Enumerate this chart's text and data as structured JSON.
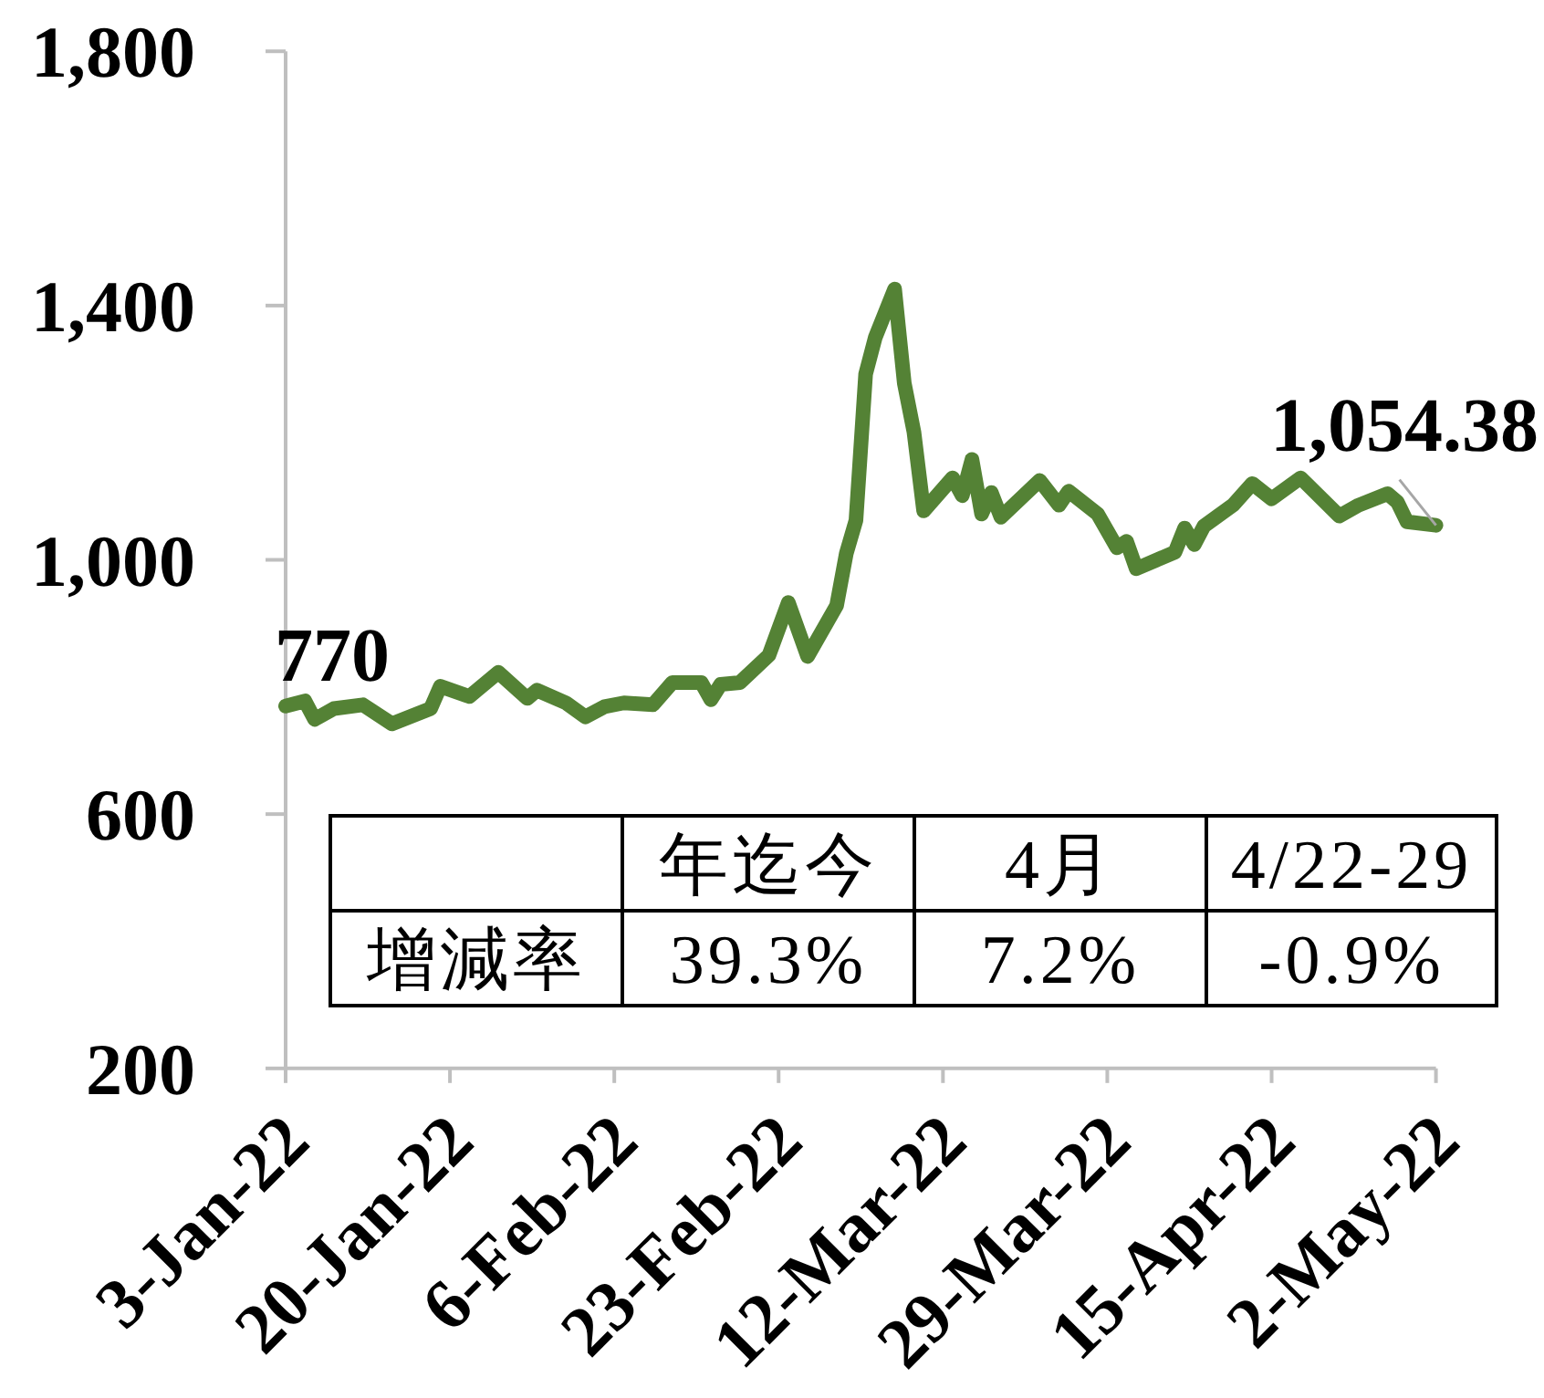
{
  "chart_data": {
    "type": "line",
    "color": "#548235",
    "x": [
      "2022-01-03",
      "2022-01-05",
      "2022-01-06",
      "2022-01-08",
      "2022-01-11",
      "2022-01-14",
      "2022-01-18",
      "2022-01-19",
      "2022-01-22",
      "2022-01-25",
      "2022-01-28",
      "2022-01-29",
      "2022-02-01",
      "2022-02-03",
      "2022-02-05",
      "2022-02-07",
      "2022-02-10",
      "2022-02-12",
      "2022-02-15",
      "2022-02-16",
      "2022-02-17",
      "2022-02-19",
      "2022-02-22",
      "2022-02-24",
      "2022-02-26",
      "2022-03-01",
      "2022-03-02",
      "2022-03-03",
      "2022-03-04",
      "2022-03-05",
      "2022-03-07",
      "2022-03-08",
      "2022-03-09",
      "2022-03-10",
      "2022-03-13",
      "2022-03-14",
      "2022-03-15",
      "2022-03-16",
      "2022-03-17",
      "2022-03-18",
      "2022-03-22",
      "2022-03-24",
      "2022-03-25",
      "2022-03-28",
      "2022-03-30",
      "2022-03-31",
      "2022-04-01",
      "2022-04-05",
      "2022-04-06",
      "2022-04-07",
      "2022-04-08",
      "2022-04-11",
      "2022-04-13",
      "2022-04-15",
      "2022-04-18",
      "2022-04-22",
      "2022-04-24",
      "2022-04-27",
      "2022-04-28",
      "2022-04-29",
      "2022-05-02"
    ],
    "values": [
      770,
      778,
      749,
      766,
      772,
      742,
      766,
      801,
      785,
      823,
      782,
      795,
      775,
      753,
      769,
      775,
      772,
      807,
      807,
      780,
      804,
      807,
      850,
      933,
      848,
      928,
      1010,
      1062,
      1292,
      1350,
      1426,
      1278,
      1201,
      1077,
      1129,
      1101,
      1158,
      1072,
      1106,
      1067,
      1125,
      1086,
      1108,
      1072,
      1019,
      1029,
      986,
      1012,
      1050,
      1024,
      1053,
      1086,
      1120,
      1096,
      1129,
      1069,
      1086,
      1104,
      1091,
      1060,
      1054.38
    ],
    "xlim": [
      "2022-01-03",
      "2022-05-02"
    ],
    "xticks": [
      {
        "value": "2022-01-03",
        "label": "3-Jan-22"
      },
      {
        "value": "2022-01-20",
        "label": "20-Jan-22"
      },
      {
        "value": "2022-02-06",
        "label": "6-Feb-22"
      },
      {
        "value": "2022-02-23",
        "label": "23-Feb-22"
      },
      {
        "value": "2022-03-12",
        "label": "12-Mar-22"
      },
      {
        "value": "2022-03-29",
        "label": "29-Mar-22"
      },
      {
        "value": "2022-04-15",
        "label": "15-Apr-22"
      },
      {
        "value": "2022-05-02",
        "label": "2-May-22"
      }
    ],
    "ylim": [
      200,
      1800
    ],
    "yticks": [
      200,
      600,
      {
        "value": 1000,
        "label": "1,000"
      },
      {
        "value": 1400,
        "label": "1,400"
      },
      {
        "value": 1800,
        "label": "1,800"
      }
    ],
    "annotations": [
      {
        "text": "770",
        "x": "2022-01-03",
        "y": 770
      },
      {
        "text": "1,054.38",
        "x": "2022-05-02",
        "y": 1054.38
      },
      "年迄今",
      "4月",
      "4/22-29",
      "增減率",
      "39.3%",
      "7.2%",
      "-0.9%"
    ]
  }
}
